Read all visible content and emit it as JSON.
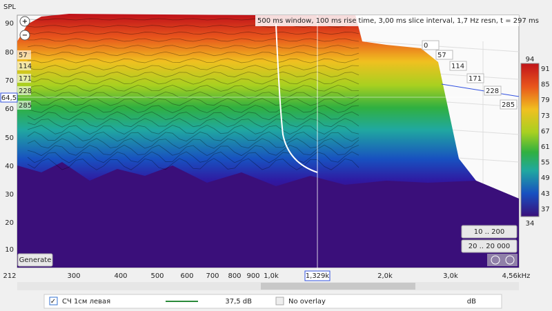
{
  "header": {
    "info": "500 ms window, 100 ms rise time, 3,00 ms slice interval, 1,7 Hz resn, t = 297 ms"
  },
  "axes": {
    "y_label": "SPL",
    "y_ticks": [
      90,
      80,
      70,
      60,
      50,
      40,
      30,
      20,
      10
    ],
    "x_ticks": [
      212,
      300,
      400,
      500,
      600,
      700,
      800,
      900,
      "1,0k",
      "2,0k",
      "3,0k",
      "4,56kHz"
    ],
    "cursor_x": "1,329k",
    "cursor_y": "64,5"
  },
  "slices": {
    "left": [
      57,
      114,
      171,
      228,
      285
    ],
    "right": [
      0,
      57,
      114,
      171,
      228,
      285
    ]
  },
  "colorbar": {
    "max": 94,
    "ticks": [
      91,
      85,
      79,
      73,
      67,
      61,
      55,
      49,
      43,
      37
    ],
    "min": 34
  },
  "buttons": {
    "generate": "Generate",
    "range_1": "10 .. 200",
    "range_2": "20 .. 20 000"
  },
  "legend": {
    "name": "СЧ 1см левая",
    "level": "37,5 dB",
    "overlay": "No overlay",
    "overlay_unit": "dB"
  }
}
